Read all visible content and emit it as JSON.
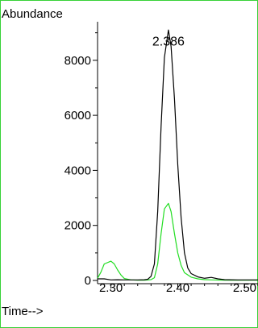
{
  "colors": {
    "frame": "#37d237",
    "primary_trace": "#000000",
    "secondary_trace": "#22dd22",
    "axis": "#000000"
  },
  "chart_data": {
    "type": "line",
    "ylabel": "Abundance",
    "xlabel": "Time-->",
    "ylim": [
      0,
      9400
    ],
    "xlim": [
      2.28,
      2.52
    ],
    "xticks": [
      2.3,
      2.4,
      2.5
    ],
    "xtick_labels": [
      "2.30",
      "2.40",
      "2.50"
    ],
    "yticks": [
      0,
      2000,
      4000,
      6000,
      8000
    ],
    "ytick_labels": [
      "0",
      "2000",
      "4000",
      "6000",
      "8000"
    ],
    "grid": false,
    "legend": "none",
    "annotations": [
      {
        "text": "2.386",
        "x": 2.386,
        "y": 9300
      }
    ],
    "series": [
      {
        "color": "#000000",
        "points": [
          [
            2.28,
            60
          ],
          [
            2.29,
            60
          ],
          [
            2.3,
            20
          ],
          [
            2.31,
            25
          ],
          [
            2.32,
            20
          ],
          [
            2.33,
            20
          ],
          [
            2.34,
            20
          ],
          [
            2.35,
            25
          ],
          [
            2.355,
            40
          ],
          [
            2.36,
            150
          ],
          [
            2.365,
            600
          ],
          [
            2.37,
            2500
          ],
          [
            2.375,
            5600
          ],
          [
            2.38,
            8100
          ],
          [
            2.386,
            9100
          ],
          [
            2.39,
            8500
          ],
          [
            2.395,
            6600
          ],
          [
            2.4,
            4200
          ],
          [
            2.405,
            2300
          ],
          [
            2.41,
            1000
          ],
          [
            2.415,
            450
          ],
          [
            2.42,
            250
          ],
          [
            2.43,
            130
          ],
          [
            2.44,
            80
          ],
          [
            2.45,
            110
          ],
          [
            2.46,
            60
          ],
          [
            2.47,
            30
          ],
          [
            2.49,
            20
          ],
          [
            2.52,
            20
          ]
        ]
      },
      {
        "color": "#22dd22",
        "points": [
          [
            2.28,
            80
          ],
          [
            2.285,
            300
          ],
          [
            2.29,
            600
          ],
          [
            2.3,
            700
          ],
          [
            2.305,
            600
          ],
          [
            2.31,
            380
          ],
          [
            2.315,
            200
          ],
          [
            2.32,
            70
          ],
          [
            2.33,
            20
          ],
          [
            2.34,
            10
          ],
          [
            2.35,
            10
          ],
          [
            2.36,
            30
          ],
          [
            2.365,
            100
          ],
          [
            2.37,
            600
          ],
          [
            2.375,
            1700
          ],
          [
            2.38,
            2600
          ],
          [
            2.386,
            2800
          ],
          [
            2.39,
            2500
          ],
          [
            2.395,
            1700
          ],
          [
            2.4,
            1000
          ],
          [
            2.405,
            550
          ],
          [
            2.41,
            280
          ],
          [
            2.42,
            120
          ],
          [
            2.43,
            60
          ],
          [
            2.44,
            30
          ],
          [
            2.45,
            20
          ],
          [
            2.47,
            10
          ],
          [
            2.52,
            10
          ]
        ]
      }
    ]
  }
}
